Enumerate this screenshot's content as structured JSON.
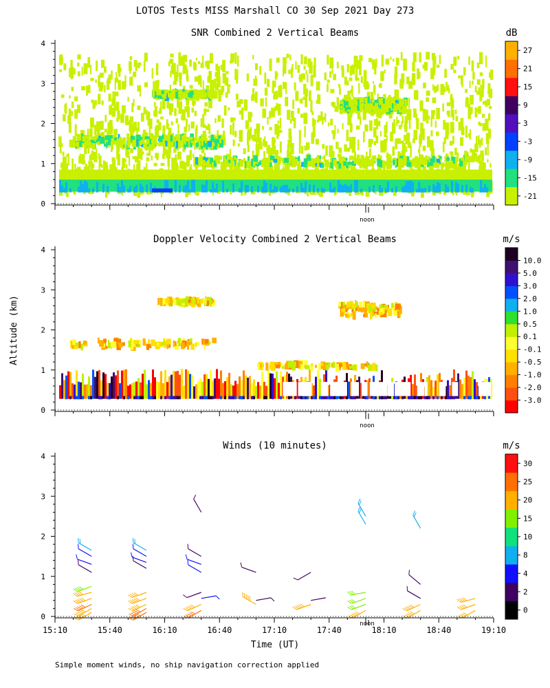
{
  "page": {
    "title": "LOTOS Tests MISS Marshall CO  30 Sep 2021 Day 273",
    "footnote": "Simple moment winds, no ship navigation correction applied",
    "y_label": "Altitude (km)",
    "x_label": "Time (UT)",
    "noon_label": "noon"
  },
  "chart_data": [
    {
      "id": "snr",
      "type": "heatmap",
      "title": "SNR Combined 2 Vertical Beams",
      "ylim": [
        0,
        4
      ],
      "yticks": [
        "0",
        "1",
        "2",
        "3",
        "4"
      ],
      "xlim_hours": [
        15.1667,
        19.1667
      ],
      "colorbar": {
        "unit": "dB",
        "labels": [
          "-21",
          "-15",
          "-9",
          "-3",
          "3",
          "9",
          "15",
          "21",
          "27"
        ],
        "colors": [
          "#c8f000",
          "#20e080",
          "#10b0f0",
          "#0040ff",
          "#5010c0",
          "#400060",
          "#ff1010",
          "#ff7000",
          "#ffb000"
        ]
      }
    },
    {
      "id": "doppler",
      "type": "heatmap",
      "title": "Doppler Velocity Combined 2 Vertical Beams",
      "ylim": [
        0,
        4
      ],
      "yticks": [
        "0",
        "1",
        "2",
        "3",
        "4"
      ],
      "xlim_hours": [
        15.1667,
        19.1667
      ],
      "colorbar": {
        "unit": "m/s",
        "labels": [
          "-3.0",
          "-2.0",
          "-1.0",
          "-0.5",
          "-0.1",
          "0.1",
          "0.5",
          "1.0",
          "2.0",
          "3.0",
          "5.0",
          "10.0"
        ],
        "colors": [
          "#ff0000",
          "#ff5010",
          "#ff8000",
          "#ffb000",
          "#ffe000",
          "#ffff30",
          "#c0f000",
          "#30e030",
          "#10b0f0",
          "#0050ff",
          "#3010d0",
          "#401070",
          "#200020"
        ]
      }
    },
    {
      "id": "winds",
      "type": "scatter",
      "title": "Winds (10 minutes)",
      "ylim": [
        0,
        4
      ],
      "yticks": [
        "0",
        "1",
        "2",
        "3",
        "4"
      ],
      "xlim_hours": [
        15.1667,
        19.1667
      ],
      "xticks": [
        "15:10",
        "15:40",
        "16:10",
        "16:40",
        "17:10",
        "17:40",
        "18:10",
        "18:40",
        "19:10"
      ],
      "colorbar": {
        "unit": "m/s",
        "labels": [
          "0",
          "2",
          "4",
          "8",
          "10",
          "15",
          "20",
          "25",
          "30"
        ],
        "colors": [
          "#000000",
          "#400060",
          "#1010ff",
          "#10b0f0",
          "#10e080",
          "#80f000",
          "#ffb000",
          "#ff7000",
          "#ff1010"
        ]
      },
      "profiles": [
        {
          "time_hours": 15.5,
          "barbs": [
            {
              "alt": 0.1,
              "speed": 24,
              "dir": 240
            },
            {
              "alt": 0.2,
              "speed": 24,
              "dir": 240
            },
            {
              "alt": 0.3,
              "speed": 25,
              "dir": 245
            },
            {
              "alt": 0.45,
              "speed": 24,
              "dir": 250
            },
            {
              "alt": 0.6,
              "speed": 22,
              "dir": 255
            },
            {
              "alt": 0.75,
              "speed": 19,
              "dir": 250
            },
            {
              "alt": 1.1,
              "speed": 3,
              "dir": 300
            },
            {
              "alt": 1.3,
              "speed": 4,
              "dir": 290
            },
            {
              "alt": 1.5,
              "speed": 6,
              "dir": 300
            },
            {
              "alt": 1.65,
              "speed": 9,
              "dir": 300
            }
          ]
        },
        {
          "time_hours": 16.0,
          "barbs": [
            {
              "alt": 0.1,
              "speed": 25,
              "dir": 240
            },
            {
              "alt": 0.2,
              "speed": 25,
              "dir": 240
            },
            {
              "alt": 0.3,
              "speed": 24,
              "dir": 245
            },
            {
              "alt": 0.45,
              "speed": 24,
              "dir": 250
            },
            {
              "alt": 0.6,
              "speed": 22,
              "dir": 250
            },
            {
              "alt": 1.2,
              "speed": 3,
              "dir": 300
            },
            {
              "alt": 1.35,
              "speed": 4,
              "dir": 290
            },
            {
              "alt": 1.5,
              "speed": 5,
              "dir": 300
            },
            {
              "alt": 1.65,
              "speed": 9,
              "dir": 300
            }
          ]
        },
        {
          "time_hours": 16.5,
          "barbs": [
            {
              "alt": 0.15,
              "speed": 25,
              "dir": 240
            },
            {
              "alt": 0.3,
              "speed": 24,
              "dir": 245
            },
            {
              "alt": 0.45,
              "speed": 4,
              "dir": 80
            },
            {
              "alt": 0.6,
              "speed": 3,
              "dir": 250
            },
            {
              "alt": 1.1,
              "speed": 4,
              "dir": 300
            },
            {
              "alt": 1.3,
              "speed": 4,
              "dir": 290
            },
            {
              "alt": 1.5,
              "speed": 3,
              "dir": 300
            },
            {
              "alt": 2.6,
              "speed": 3,
              "dir": 330
            }
          ]
        },
        {
          "time_hours": 17.0,
          "barbs": [
            {
              "alt": 0.3,
              "speed": 24,
              "dir": 300
            },
            {
              "alt": 0.4,
              "speed": 3,
              "dir": 80
            },
            {
              "alt": 1.1,
              "speed": 3,
              "dir": 290
            }
          ]
        },
        {
          "time_hours": 17.5,
          "barbs": [
            {
              "alt": 0.3,
              "speed": 24,
              "dir": 250
            },
            {
              "alt": 0.4,
              "speed": 2,
              "dir": 80
            },
            {
              "alt": 1.1,
              "speed": 3,
              "dir": 240
            }
          ]
        },
        {
          "time_hours": 18.0,
          "barbs": [
            {
              "alt": 0.15,
              "speed": 24,
              "dir": 240
            },
            {
              "alt": 0.3,
              "speed": 16,
              "dir": 250
            },
            {
              "alt": 0.45,
              "speed": 15,
              "dir": 250
            },
            {
              "alt": 0.6,
              "speed": 15,
              "dir": 260
            },
            {
              "alt": 2.3,
              "speed": 9,
              "dir": 330
            },
            {
              "alt": 2.5,
              "speed": 9,
              "dir": 330
            }
          ]
        },
        {
          "time_hours": 18.5,
          "barbs": [
            {
              "alt": 0.15,
              "speed": 24,
              "dir": 240
            },
            {
              "alt": 0.3,
              "speed": 24,
              "dir": 245
            },
            {
              "alt": 0.45,
              "speed": 3,
              "dir": 300
            },
            {
              "alt": 0.8,
              "speed": 3,
              "dir": 310
            },
            {
              "alt": 2.2,
              "speed": 9,
              "dir": 330
            }
          ]
        },
        {
          "time_hours": 19.0,
          "barbs": [
            {
              "alt": 0.15,
              "speed": 22,
              "dir": 240
            },
            {
              "alt": 0.3,
              "speed": 21,
              "dir": 250
            },
            {
              "alt": 0.45,
              "speed": 20,
              "dir": 255
            }
          ]
        }
      ]
    }
  ]
}
